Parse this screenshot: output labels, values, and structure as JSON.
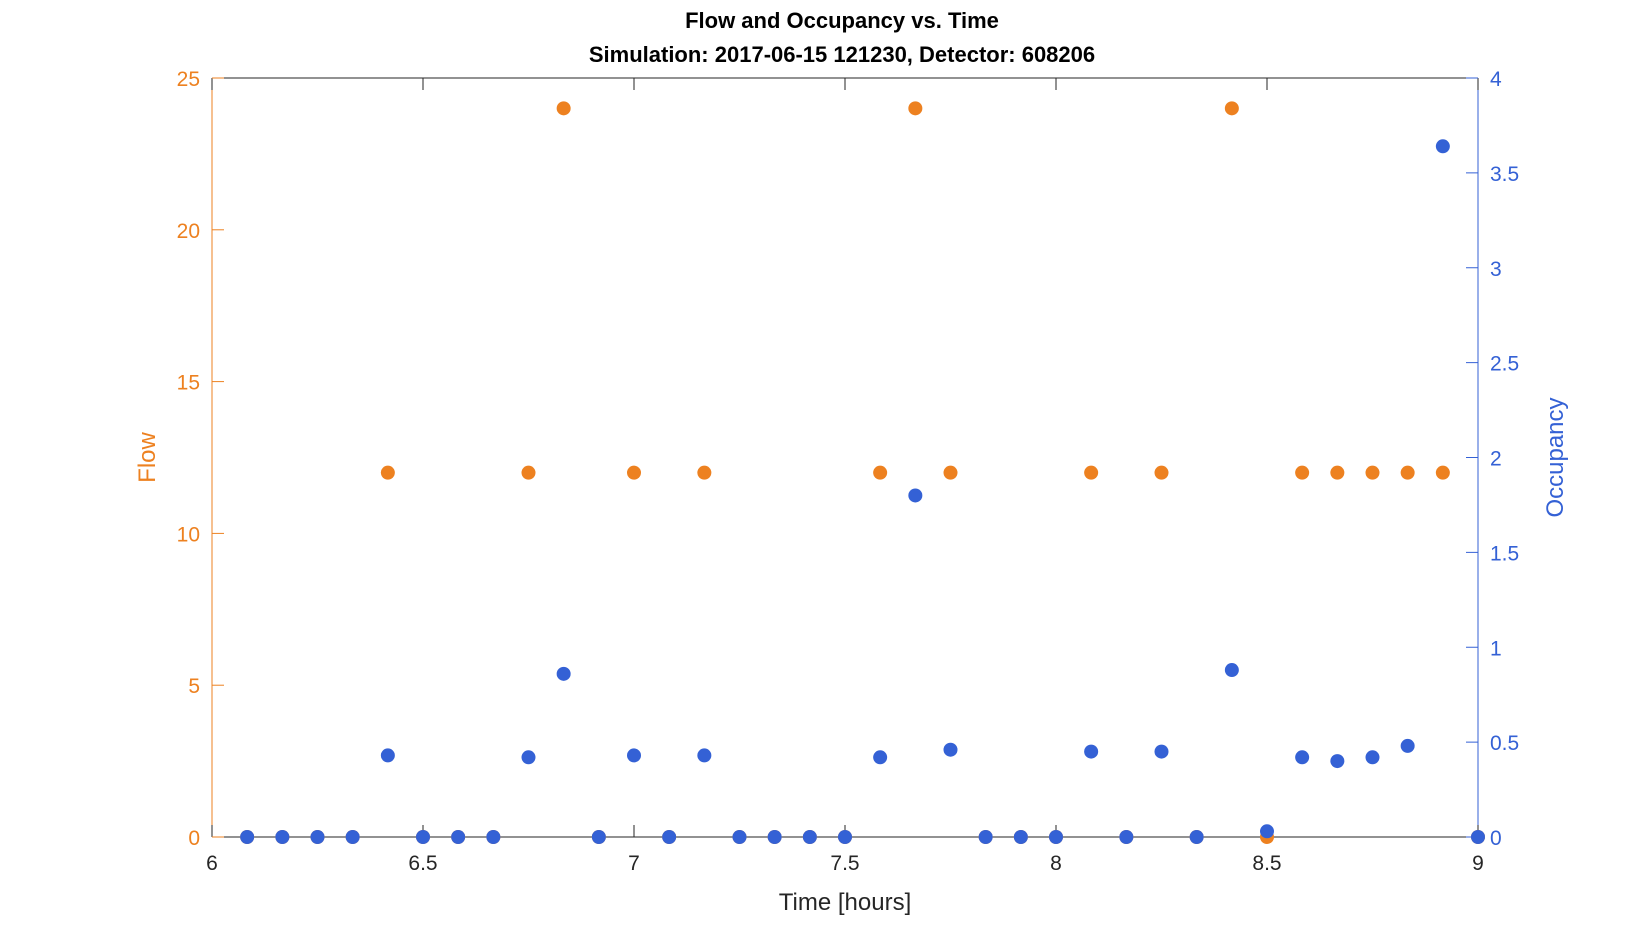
{
  "chart_data": {
    "type": "scatter",
    "title": "Flow and Occupancy vs. Time",
    "subtitle": "Simulation:  2017-06-15 121230,  Detector:  608206",
    "xlabel": "Time [hours]",
    "ylabel_left": "Flow",
    "ylabel_right": "Occupancy",
    "xlim": [
      6,
      9
    ],
    "ylim_left": [
      0,
      25
    ],
    "ylim_right": [
      0,
      4
    ],
    "x_ticks": [
      "6",
      "6.5",
      "7",
      "7.5",
      "8",
      "8.5",
      "9"
    ],
    "y_left_ticks": [
      "0",
      "5",
      "10",
      "15",
      "20",
      "25"
    ],
    "y_right_ticks": [
      "0",
      "0.5",
      "1",
      "1.5",
      "2",
      "2.5",
      "3",
      "3.5",
      "4"
    ],
    "grid": false,
    "colors": {
      "flow": "#ED8120",
      "occupancy": "#3461D5",
      "axes": "#262626"
    },
    "series": [
      {
        "name": "Flow",
        "axis": "left",
        "x": [
          6.0833,
          6.1667,
          6.25,
          6.3333,
          6.4167,
          6.5,
          6.5833,
          6.6667,
          6.75,
          6.8333,
          6.9167,
          7.0,
          7.0833,
          7.1667,
          7.25,
          7.3333,
          7.4167,
          7.5,
          7.5833,
          7.6667,
          7.75,
          7.8333,
          7.9167,
          8.0,
          8.0833,
          8.1667,
          8.25,
          8.3333,
          8.4167,
          8.5,
          8.5833,
          8.6667,
          8.75,
          8.8333,
          8.9167,
          9.0
        ],
        "y": [
          0,
          0,
          0,
          0,
          12,
          0,
          0,
          0,
          12,
          24,
          0,
          12,
          0,
          12,
          0,
          0,
          0,
          0,
          12,
          24,
          12,
          0,
          0,
          0,
          12,
          0,
          12,
          0,
          24,
          0,
          12,
          12,
          12,
          12,
          12,
          0
        ]
      },
      {
        "name": "Occupancy",
        "axis": "right",
        "x": [
          6.0833,
          6.1667,
          6.25,
          6.3333,
          6.4167,
          6.5,
          6.5833,
          6.6667,
          6.75,
          6.8333,
          6.9167,
          7.0,
          7.0833,
          7.1667,
          7.25,
          7.3333,
          7.4167,
          7.5,
          7.5833,
          7.6667,
          7.75,
          7.8333,
          7.9167,
          8.0,
          8.0833,
          8.1667,
          8.25,
          8.3333,
          8.4167,
          8.5,
          8.5833,
          8.6667,
          8.75,
          8.8333,
          8.9167,
          9.0
        ],
        "y": [
          0,
          0,
          0,
          0,
          0.43,
          0,
          0,
          0,
          0.42,
          0.86,
          0,
          0.43,
          0,
          0.43,
          0,
          0,
          0,
          0,
          0.42,
          1.8,
          0.46,
          0,
          0,
          0,
          0.45,
          0,
          0.45,
          0,
          0.88,
          0.03,
          0.42,
          0.4,
          0.42,
          0.48,
          3.64,
          0
        ]
      }
    ]
  }
}
